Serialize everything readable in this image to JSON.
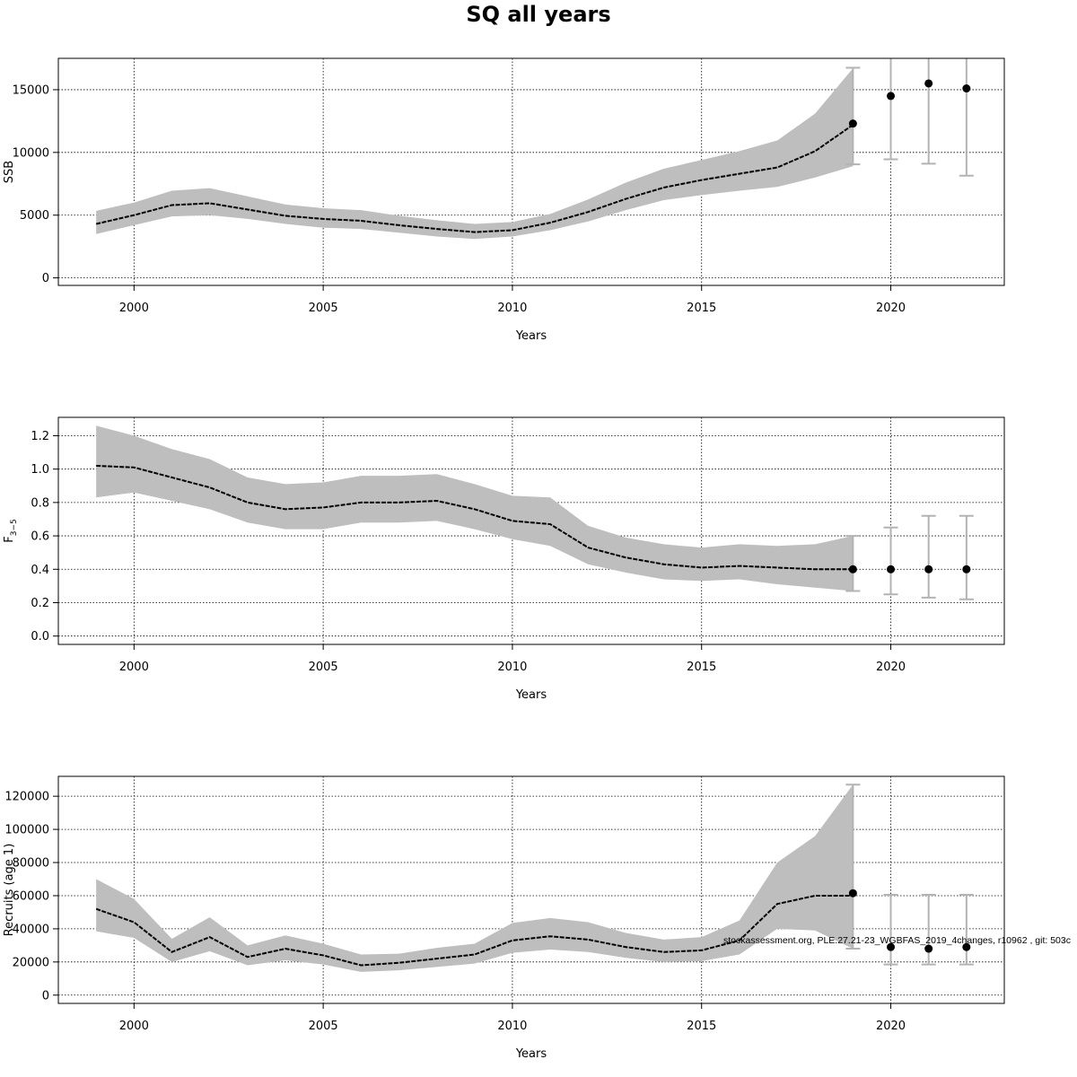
{
  "title": "SQ all years",
  "footnote": "stockassessment.org, PLE.27.21-23_WGBFAS_2019_4changes, r10962 , git: 503c",
  "colors": {
    "band": "#bebebe",
    "line": "#000000",
    "errorbar": "#b3b3b3",
    "point": "#000000",
    "grid": "#000000"
  },
  "chart_data": [
    {
      "type": "line",
      "name": "ssb",
      "xlabel": "Years",
      "ylabel": "SSB",
      "ylabel_sub": "",
      "xlim": [
        1998,
        2023
      ],
      "ylim": [
        -600,
        17500
      ],
      "xticks": [
        2000,
        2005,
        2010,
        2015,
        2020
      ],
      "yticks": [
        0,
        5000,
        10000,
        15000
      ],
      "grid": true,
      "x": [
        1999,
        2000,
        2001,
        2002,
        2003,
        2004,
        2005,
        2006,
        2007,
        2008,
        2009,
        2010,
        2011,
        2012,
        2013,
        2014,
        2015,
        2016,
        2017,
        2018,
        2019
      ],
      "estimate": [
        4300,
        5000,
        5800,
        5950,
        5450,
        4950,
        4700,
        4550,
        4200,
        3900,
        3650,
        3800,
        4400,
        5250,
        6300,
        7200,
        7800,
        8300,
        8800,
        10100,
        12200
      ],
      "lower": [
        3500,
        4200,
        4900,
        5000,
        4700,
        4300,
        4000,
        3900,
        3600,
        3300,
        3100,
        3300,
        3800,
        4500,
        5400,
        6200,
        6600,
        6950,
        7250,
        8000,
        8900
      ],
      "upper": [
        5350,
        6000,
        6950,
        7150,
        6500,
        5850,
        5550,
        5400,
        4950,
        4600,
        4300,
        4450,
        5100,
        6250,
        7600,
        8700,
        9400,
        10100,
        10950,
        13100,
        16700
      ],
      "forecast": [
        {
          "year": 2019,
          "value": 12300,
          "lower": 9050,
          "upper": 16750
        },
        {
          "year": 2020,
          "value": 14500,
          "lower": 9450,
          "upper": 18000
        },
        {
          "year": 2021,
          "value": 15500,
          "lower": 9100,
          "upper": 18000
        },
        {
          "year": 2022,
          "value": 15100,
          "lower": 8150,
          "upper": 18000
        }
      ]
    },
    {
      "type": "line",
      "name": "fbar",
      "xlabel": "Years",
      "ylabel": "F",
      "ylabel_sub": "3−5",
      "xlim": [
        1998,
        2023
      ],
      "ylim": [
        -0.05,
        1.31
      ],
      "xticks": [
        2000,
        2005,
        2010,
        2015,
        2020
      ],
      "yticks": [
        0.0,
        0.2,
        0.4,
        0.6,
        0.8,
        1.0,
        1.2
      ],
      "ytick_labels": [
        "0.0",
        "0.2",
        "0.4",
        "0.6",
        "0.8",
        "1.0",
        "1.2"
      ],
      "grid": true,
      "x": [
        1999,
        2000,
        2001,
        2002,
        2003,
        2004,
        2005,
        2006,
        2007,
        2008,
        2009,
        2010,
        2011,
        2012,
        2013,
        2014,
        2015,
        2016,
        2017,
        2018,
        2019
      ],
      "estimate": [
        1.02,
        1.01,
        0.95,
        0.89,
        0.8,
        0.76,
        0.77,
        0.8,
        0.8,
        0.81,
        0.76,
        0.69,
        0.67,
        0.53,
        0.47,
        0.43,
        0.41,
        0.42,
        0.41,
        0.4,
        0.4
      ],
      "lower": [
        0.83,
        0.86,
        0.81,
        0.76,
        0.68,
        0.64,
        0.64,
        0.68,
        0.68,
        0.69,
        0.64,
        0.58,
        0.54,
        0.43,
        0.38,
        0.34,
        0.33,
        0.34,
        0.31,
        0.29,
        0.27
      ],
      "upper": [
        1.26,
        1.2,
        1.12,
        1.06,
        0.95,
        0.91,
        0.92,
        0.96,
        0.96,
        0.97,
        0.91,
        0.84,
        0.83,
        0.66,
        0.59,
        0.55,
        0.53,
        0.55,
        0.54,
        0.55,
        0.6
      ],
      "forecast": [
        {
          "year": 2019,
          "value": 0.4,
          "lower": 0.27,
          "upper": 0.6
        },
        {
          "year": 2020,
          "value": 0.4,
          "lower": 0.25,
          "upper": 0.65
        },
        {
          "year": 2021,
          "value": 0.4,
          "lower": 0.23,
          "upper": 0.72
        },
        {
          "year": 2022,
          "value": 0.4,
          "lower": 0.22,
          "upper": 0.72
        }
      ]
    },
    {
      "type": "line",
      "name": "recruits",
      "xlabel": "Years",
      "ylabel": "Recruits (age 1)",
      "ylabel_sub": "",
      "xlim": [
        1998,
        2023
      ],
      "ylim": [
        -5000,
        132000
      ],
      "xticks": [
        2000,
        2005,
        2010,
        2015,
        2020
      ],
      "yticks": [
        0,
        20000,
        40000,
        60000,
        80000,
        100000,
        120000
      ],
      "grid": true,
      "x": [
        1999,
        2000,
        2001,
        2002,
        2003,
        2004,
        2005,
        2006,
        2007,
        2008,
        2009,
        2010,
        2011,
        2012,
        2013,
        2014,
        2015,
        2016,
        2017,
        2018,
        2019
      ],
      "estimate": [
        52000,
        44000,
        26000,
        35000,
        23000,
        28000,
        24000,
        18000,
        19500,
        22000,
        24500,
        33000,
        35500,
        33500,
        29000,
        26000,
        27000,
        33000,
        55000,
        60000,
        60000
      ],
      "lower": [
        38500,
        34500,
        20000,
        26500,
        18000,
        21000,
        18500,
        14000,
        15000,
        17000,
        19000,
        25500,
        27500,
        26000,
        22500,
        20000,
        20500,
        24500,
        40000,
        39000,
        28000
      ],
      "upper": [
        70000,
        58000,
        34000,
        47000,
        30000,
        36000,
        31000,
        24500,
        25000,
        28500,
        31000,
        43500,
        46500,
        44000,
        37500,
        33500,
        35000,
        45000,
        80000,
        96000,
        127000
      ],
      "forecast": [
        {
          "year": 2019,
          "value": 61500,
          "lower": 28000,
          "upper": 127000
        },
        {
          "year": 2020,
          "value": 29000,
          "lower": 18500,
          "upper": 60500
        },
        {
          "year": 2021,
          "value": 28000,
          "lower": 18500,
          "upper": 60500
        },
        {
          "year": 2022,
          "value": 29000,
          "lower": 18500,
          "upper": 60500
        }
      ]
    }
  ]
}
